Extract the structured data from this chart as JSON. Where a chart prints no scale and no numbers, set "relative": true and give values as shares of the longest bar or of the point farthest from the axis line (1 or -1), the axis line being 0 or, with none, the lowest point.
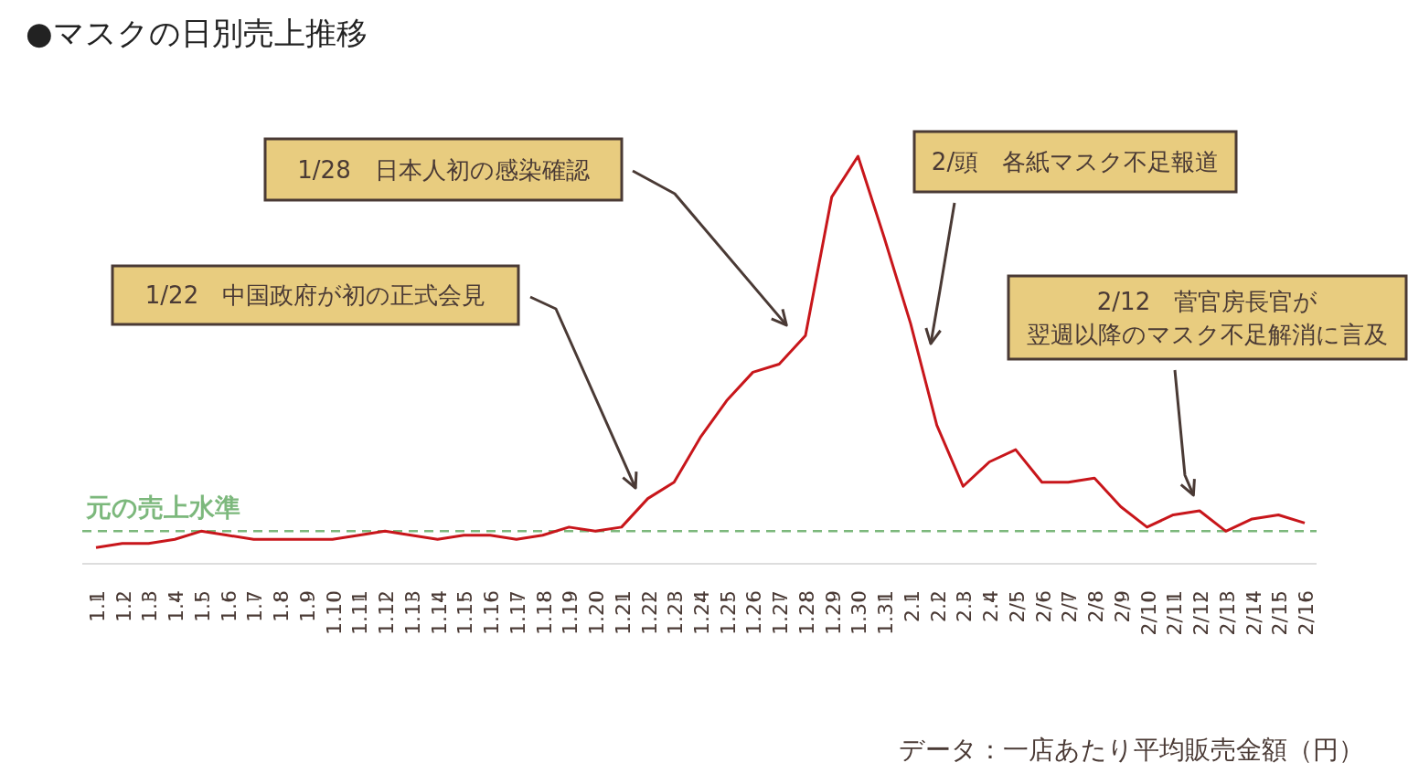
{
  "chart_data": {
    "type": "line",
    "title": "●マスクの日別売上推移",
    "relative": true,
    "color": "#c8161b",
    "categories": [
      "1.1",
      "1.2",
      "1.3",
      "1.4",
      "1.5",
      "1.6",
      "1.7",
      "1.8",
      "1.9",
      "1.10",
      "1.11",
      "1.12",
      "1.13",
      "1.14",
      "1.15",
      "1.16",
      "1.17",
      "1.18",
      "1.19",
      "1.20",
      "1.21",
      "1.22",
      "1.23",
      "1.24",
      "1.25",
      "1.26",
      "1.27",
      "1.28",
      "1.29",
      "1.30",
      "1.31",
      "2.1",
      "2.2",
      "2.3",
      "2.4",
      "2/5",
      "2/6",
      "2/7",
      "2/8",
      "2/9",
      "2/10",
      "2/11",
      "2/12",
      "2/13",
      "2/14",
      "2/15",
      "2/16"
    ],
    "values": [
      0.04,
      0.05,
      0.05,
      0.06,
      0.08,
      0.07,
      0.06,
      0.06,
      0.06,
      0.06,
      0.07,
      0.08,
      0.07,
      0.06,
      0.07,
      0.07,
      0.06,
      0.07,
      0.09,
      0.08,
      0.09,
      0.16,
      0.2,
      0.31,
      0.4,
      0.47,
      0.49,
      0.56,
      0.9,
      1,
      0.8,
      0.59,
      0.34,
      0.19,
      0.25,
      0.28,
      0.2,
      0.2,
      0.21,
      0.14,
      0.09,
      0.12,
      0.13,
      0.08,
      0.11,
      0.12,
      0.1
    ],
    "ref_lines": [
      {
        "axis": "y",
        "value": 0.08,
        "label": "元の売上水準",
        "color": "#7cb87c",
        "line_style": "dashed"
      }
    ],
    "annotations": [
      "1/22　中国政府が初の正式会見",
      "1/28　日本人初の感染確認",
      "2/頭　各紙マスク不足報道",
      "2/12　菅官房長官が",
      "翌週以降のマスク不足解消に言及",
      "データ：一店あたり平均販売金額（円）"
    ]
  }
}
